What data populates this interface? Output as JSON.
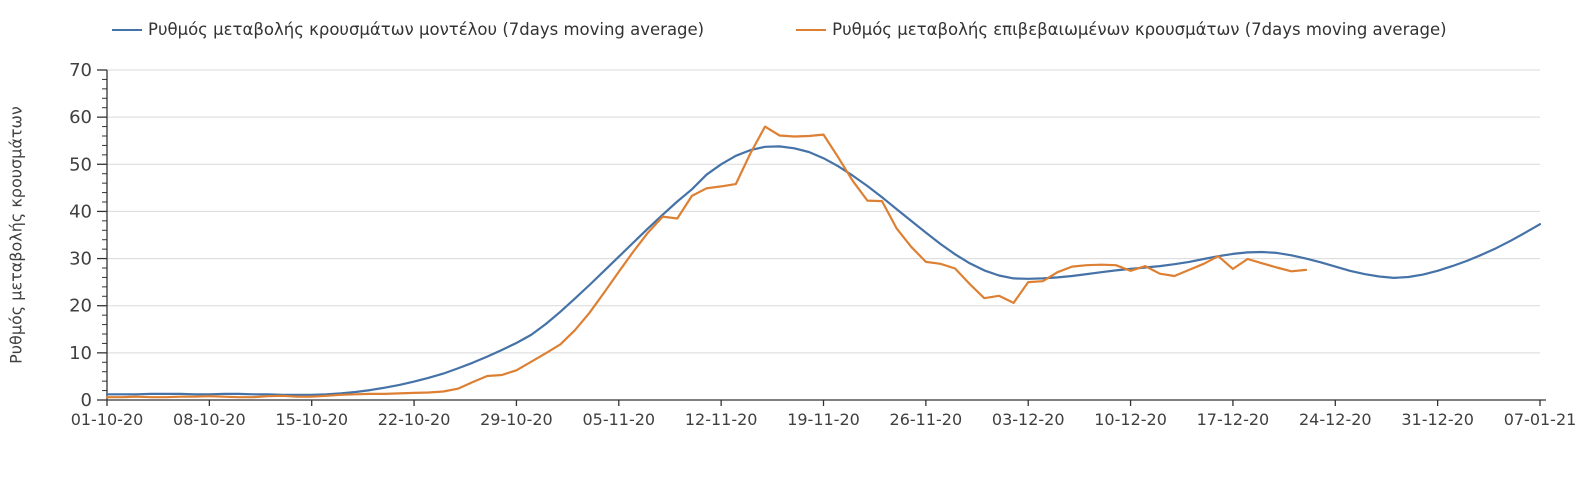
{
  "figure": {
    "background": "#ffffff",
    "colors": {
      "grid": "#d9d9d9",
      "axis": "#333333",
      "tick_label": "#404040",
      "legend_text": "#333333"
    }
  },
  "legend": {
    "items": [
      {
        "label": "Ρυθμός μεταβολής κρουσμάτων μοντέλου (7days moving average)",
        "color": "#4572a7"
      },
      {
        "label": "Ρυθμός μεταβολής επιβεβαιωμένων κρουσμάτων (7days moving average)",
        "color": "#dd8033"
      }
    ]
  },
  "chart_data": {
    "type": "line",
    "title": "",
    "xlabel": "",
    "ylabel": "Ρυθμός μεταβολής κρουσμάτων",
    "ylim": [
      0,
      70
    ],
    "y_major_ticks": [
      0,
      10,
      20,
      30,
      40,
      50,
      60,
      70
    ],
    "y_minor_step": 2,
    "grid": "horizontal-major",
    "legend_position": "top",
    "x_tick_labels": [
      "01-10-20",
      "08-10-20",
      "15-10-20",
      "22-10-20",
      "29-10-20",
      "05-11-20",
      "12-11-20",
      "19-11-20",
      "26-11-20",
      "03-12-20",
      "10-12-20",
      "17-12-20",
      "24-12-20",
      "31-12-20",
      "07-01-21"
    ],
    "x_tick_days": [
      0,
      7,
      14,
      21,
      28,
      35,
      42,
      49,
      56,
      63,
      70,
      77,
      84,
      91,
      98
    ],
    "x_range_days": [
      0,
      98
    ],
    "series": [
      {
        "name": "Ρυθμός μεταβολής κρουσμάτων μοντέλου (7days moving average)",
        "color": "#4572a7",
        "start_day": 0,
        "step_days": 1,
        "values": [
          1.2,
          1.2,
          1.2,
          1.3,
          1.3,
          1.3,
          1.2,
          1.2,
          1.3,
          1.3,
          1.2,
          1.2,
          1.1,
          1.1,
          1.1,
          1.2,
          1.4,
          1.7,
          2.1,
          2.6,
          3.2,
          3.9,
          4.7,
          5.6,
          6.7,
          7.9,
          9.2,
          10.6,
          12.1,
          13.8,
          16.1,
          18.7,
          21.5,
          24.4,
          27.4,
          30.4,
          33.4,
          36.4,
          39.3,
          42.1,
          44.7,
          47.8,
          50.0,
          51.8,
          53.0,
          53.7,
          53.8,
          53.4,
          52.6,
          51.3,
          49.6,
          47.6,
          45.4,
          43.0,
          40.5,
          38.0,
          35.5,
          33.1,
          30.9,
          29.0,
          27.5,
          26.4,
          25.8,
          25.7,
          25.8,
          26.0,
          26.3,
          26.7,
          27.1,
          27.5,
          27.8,
          28.1,
          28.4,
          28.8,
          29.3,
          29.9,
          30.5,
          31.0,
          31.3,
          31.4,
          31.2,
          30.7,
          30.0,
          29.2,
          28.3,
          27.4,
          26.7,
          26.2,
          25.9,
          26.1,
          26.6,
          27.4,
          28.4,
          29.5,
          30.8,
          32.2,
          33.8,
          35.5,
          37.3
        ]
      },
      {
        "name": "Ρυθμός μεταβολής επιβεβαιωμένων κρουσμάτων (7days moving average)",
        "color": "#dd8033",
        "start_day": 0,
        "step_days": 1,
        "values": [
          0.6,
          0.6,
          0.7,
          0.6,
          0.6,
          0.7,
          0.7,
          0.8,
          0.7,
          0.6,
          0.6,
          0.8,
          0.9,
          0.7,
          0.7,
          0.9,
          1.1,
          1.2,
          1.3,
          1.3,
          1.4,
          1.5,
          1.6,
          1.8,
          2.4,
          3.8,
          5.1,
          5.3,
          6.3,
          8.1,
          9.9,
          11.8,
          14.8,
          18.5,
          22.8,
          27.2,
          31.5,
          35.5,
          38.9,
          38.5,
          43.3,
          44.9,
          45.3,
          45.8,
          52.3,
          58.0,
          56.1,
          55.9,
          56.0,
          56.3,
          51.5,
          46.5,
          42.3,
          42.2,
          36.4,
          32.5,
          29.3,
          28.9,
          27.9,
          24.6,
          21.6,
          22.1,
          20.6,
          25.0,
          25.2,
          27.1,
          28.3,
          28.6,
          28.7,
          28.6,
          27.4,
          28.4,
          26.8,
          26.3,
          27.6,
          28.9,
          30.5,
          27.8,
          29.9,
          29.0,
          28.1,
          27.3,
          27.6
        ]
      }
    ]
  }
}
